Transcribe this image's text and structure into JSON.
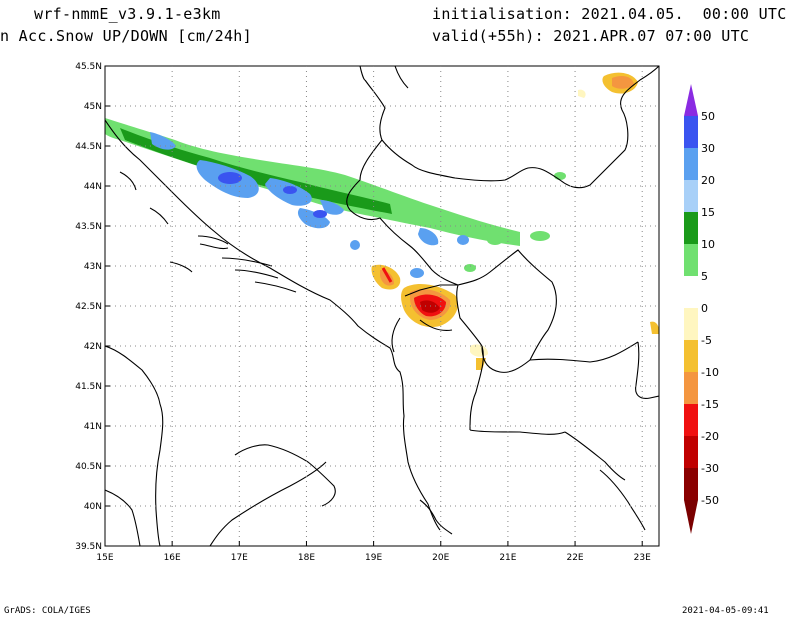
{
  "header": {
    "model": "wrf-nmmE_v3.9.1-e3km",
    "field": "n Acc.Snow UP/DOWN [cm/24h]",
    "init": "initialisation: 2021.04.05.  00:00 UTC",
    "valid": "valid(+55h): 2021.APR.07 07:00 UTC"
  },
  "map": {
    "lon_range": [
      15,
      23.25
    ],
    "lat_range": [
      39.5,
      45.5
    ],
    "lon_ticks": [
      "15E",
      "16E",
      "17E",
      "18E",
      "19E",
      "20E",
      "21E",
      "22E",
      "23E"
    ],
    "lat_ticks": [
      "45.5N",
      "45N",
      "44.5N",
      "44N",
      "43.5N",
      "43N",
      "42.5N",
      "42N",
      "41.5N",
      "41N",
      "40.5N",
      "40N",
      "39.5N"
    ],
    "grid": "dotted"
  },
  "colorbar": {
    "labels": [
      "50",
      "30",
      "20",
      "15",
      "10",
      "5",
      "0",
      "-5",
      "-10",
      "-15",
      "-20",
      "-30",
      "-50"
    ],
    "colors": [
      "#6a1fe0",
      "#3a54f0",
      "#5aa0f0",
      "#a8d0f8",
      "#1a9a1a",
      "#70e070",
      "#ffffff",
      "#fff6c0",
      "#f4c030",
      "#f49640",
      "#f01010",
      "#c00000",
      "#8a0000"
    ],
    "top_arrow_color": "#8a2be2",
    "bottom_arrow_color": "#7a0000"
  },
  "footer": {
    "left": "GrADS: COLA/IGES",
    "right": "2021-04-05-09:41"
  }
}
